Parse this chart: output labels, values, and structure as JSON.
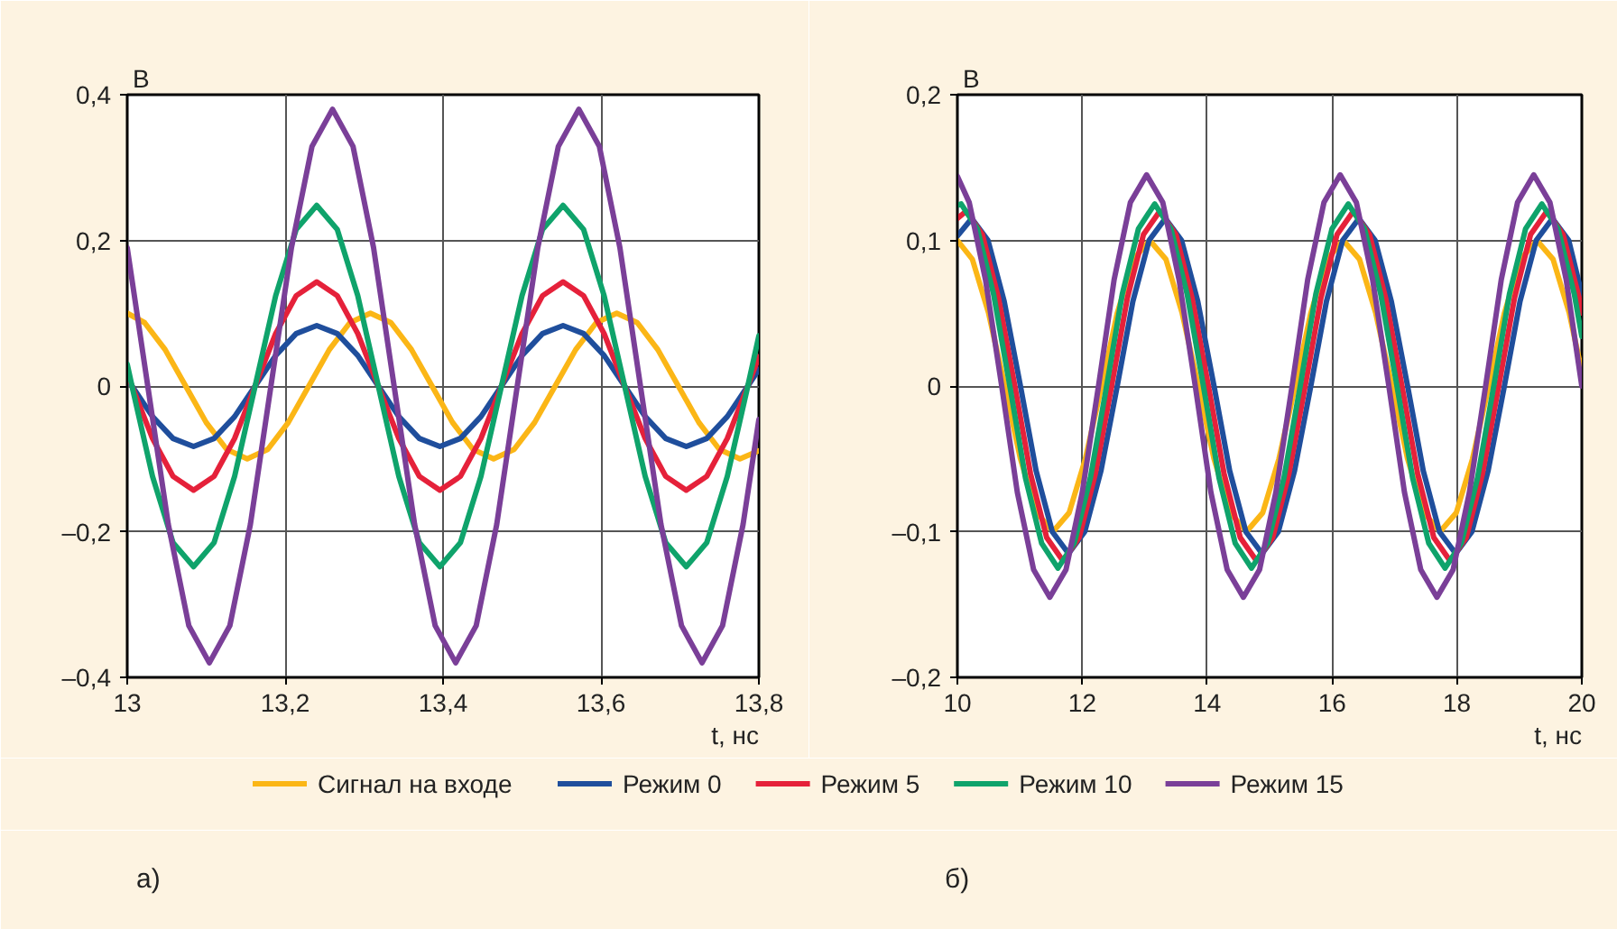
{
  "chart_data": [
    {
      "type": "line",
      "xlabel": "t, нс",
      "ylabel": "В",
      "annotations": [
        "а)"
      ],
      "grid": true,
      "legend": "bottom",
      "line_style": "solid",
      "xlim": [
        13,
        13.8
      ],
      "xticks": [
        13,
        {
          "value": 13.2,
          "label": "13,2"
        },
        {
          "value": 13.4,
          "label": "13,4"
        },
        {
          "value": 13.6,
          "label": "13,6"
        },
        {
          "value": 13.8,
          "label": "13,8"
        }
      ],
      "ylim": [
        -0.4,
        0.4
      ],
      "yticks": [
        {
          "value": -0.4,
          "label": "–0,4"
        },
        {
          "value": -0.2,
          "label": "–0,2"
        },
        0,
        {
          "value": 0.2,
          "label": "0,2"
        },
        {
          "value": 0.4,
          "label": "0,4"
        }
      ],
      "series": [
        {
          "name": "Сигнал на входе",
          "color": "#fbb616",
          "x": [
            13,
            13.022,
            13.048,
            13.074,
            13.1,
            13.126,
            13.152,
            13.178,
            13.204,
            13.23,
            13.256,
            13.282,
            13.308,
            13.334,
            13.36,
            13.386,
            13.412,
            13.438,
            13.464,
            13.49,
            13.516,
            13.542,
            13.568,
            13.594,
            13.62,
            13.646,
            13.672,
            13.698,
            13.724,
            13.75,
            13.776,
            13.8
          ],
          "values": [
            0.1,
            0.087,
            0.05,
            0,
            -0.05,
            -0.087,
            -0.1,
            -0.087,
            -0.05,
            0,
            0.05,
            0.087,
            0.1,
            0.087,
            0.05,
            0,
            -0.05,
            -0.087,
            -0.1,
            -0.087,
            -0.05,
            0,
            0.05,
            0.087,
            0.1,
            0.087,
            0.05,
            0,
            -0.05,
            -0.087,
            -0.1,
            -0.089
          ]
        },
        {
          "name": "Режим 0",
          "color": "#1f4e9c",
          "x": [
            13,
            13.006,
            13.032,
            13.058,
            13.084,
            13.11,
            13.136,
            13.162,
            13.188,
            13.214,
            13.24,
            13.266,
            13.292,
            13.318,
            13.344,
            13.37,
            13.396,
            13.422,
            13.448,
            13.474,
            13.5,
            13.526,
            13.552,
            13.578,
            13.604,
            13.63,
            13.656,
            13.682,
            13.708,
            13.734,
            13.76,
            13.786,
            13.8
          ],
          "values": [
            0.01,
            0,
            -0.042,
            -0.072,
            -0.083,
            -0.072,
            -0.042,
            0,
            0.042,
            0.072,
            0.083,
            0.072,
            0.042,
            0,
            -0.042,
            -0.072,
            -0.083,
            -0.072,
            -0.042,
            0,
            0.042,
            0.072,
            0.083,
            0.072,
            0.042,
            0,
            -0.042,
            -0.072,
            -0.083,
            -0.072,
            -0.042,
            0,
            0.023
          ]
        },
        {
          "name": "Режим 5",
          "color": "#e5213a",
          "x": [
            13,
            13.006,
            13.032,
            13.058,
            13.084,
            13.11,
            13.136,
            13.162,
            13.188,
            13.214,
            13.24,
            13.266,
            13.292,
            13.318,
            13.344,
            13.37,
            13.396,
            13.422,
            13.448,
            13.474,
            13.5,
            13.526,
            13.552,
            13.578,
            13.604,
            13.63,
            13.656,
            13.682,
            13.708,
            13.734,
            13.76,
            13.786,
            13.8
          ],
          "values": [
            0.017,
            0,
            -0.072,
            -0.124,
            -0.143,
            -0.124,
            -0.072,
            0,
            0.072,
            0.124,
            0.143,
            0.124,
            0.072,
            0,
            -0.072,
            -0.124,
            -0.143,
            -0.124,
            -0.072,
            0,
            0.072,
            0.124,
            0.143,
            0.124,
            0.072,
            0,
            -0.072,
            -0.124,
            -0.143,
            -0.124,
            -0.072,
            0,
            0.04
          ]
        },
        {
          "name": "Режим 10",
          "color": "#0fa36b",
          "x": [
            13,
            13.006,
            13.032,
            13.058,
            13.084,
            13.11,
            13.136,
            13.162,
            13.188,
            13.214,
            13.24,
            13.266,
            13.292,
            13.318,
            13.344,
            13.37,
            13.396,
            13.422,
            13.448,
            13.474,
            13.5,
            13.526,
            13.552,
            13.578,
            13.604,
            13.63,
            13.656,
            13.682,
            13.708,
            13.734,
            13.76,
            13.786,
            13.8
          ],
          "values": [
            0.03,
            0,
            -0.124,
            -0.215,
            -0.248,
            -0.215,
            -0.124,
            0,
            0.124,
            0.215,
            0.248,
            0.215,
            0.124,
            0,
            -0.124,
            -0.215,
            -0.248,
            -0.215,
            -0.124,
            0,
            0.124,
            0.215,
            0.248,
            0.215,
            0.124,
            0,
            -0.124,
            -0.215,
            -0.248,
            -0.215,
            -0.124,
            0,
            0.069
          ]
        },
        {
          "name": "Режим 15",
          "color": "#7a3f98",
          "x": [
            13.0,
            13.026,
            13.052,
            13.078,
            13.104,
            13.13,
            13.156,
            13.182,
            13.208,
            13.234,
            13.26,
            13.286,
            13.312,
            13.338,
            13.364,
            13.39,
            13.416,
            13.442,
            13.468,
            13.494,
            13.52,
            13.546,
            13.572,
            13.598,
            13.624,
            13.65,
            13.676,
            13.702,
            13.728,
            13.754,
            13.78,
            13.8
          ],
          "values": [
            0.19,
            0,
            -0.19,
            -0.329,
            -0.38,
            -0.329,
            -0.19,
            0,
            0.19,
            0.329,
            0.38,
            0.329,
            0.19,
            0,
            -0.19,
            -0.329,
            -0.38,
            -0.329,
            -0.19,
            0,
            0.19,
            0.329,
            0.38,
            0.329,
            0.19,
            0,
            -0.19,
            -0.329,
            -0.38,
            -0.329,
            -0.19,
            -0.046
          ]
        }
      ]
    },
    {
      "type": "line",
      "xlabel": "t, нс",
      "ylabel": "В",
      "annotations": [
        "б)"
      ],
      "grid": true,
      "line_style": "solid",
      "xlim": [
        10,
        20
      ],
      "xticks": [
        10,
        12,
        14,
        16,
        18,
        20
      ],
      "ylim": [
        -0.2,
        0.2
      ],
      "yticks": [
        {
          "value": -0.2,
          "label": "–0,2"
        },
        {
          "value": -0.1,
          "label": "–0,1"
        },
        0,
        {
          "value": 0.1,
          "label": "0,1"
        },
        {
          "value": 0.2,
          "label": "0,2"
        }
      ],
      "series": [
        {
          "color": "#fbb616",
          "x": [
            10,
            10.24,
            10.5,
            10.76,
            11.01,
            11.27,
            11.53,
            11.79,
            12.05,
            12.31,
            12.56,
            12.82,
            13.08,
            13.34,
            13.6,
            13.86,
            14.11,
            14.37,
            14.63,
            14.89,
            15.15,
            15.41,
            15.66,
            15.92,
            16.18,
            16.44,
            16.7,
            16.96,
            17.21,
            17.47,
            17.73,
            17.99,
            18.25,
            18.51,
            18.76,
            19.02,
            19.28,
            19.54,
            19.8,
            20
          ],
          "values": [
            0.1,
            0.087,
            0.05,
            0,
            -0.05,
            -0.087,
            -0.1,
            -0.087,
            -0.05,
            0,
            0.05,
            0.087,
            0.1,
            0.087,
            0.05,
            0,
            -0.05,
            -0.087,
            -0.1,
            -0.087,
            -0.05,
            0,
            0.05,
            0.087,
            0.1,
            0.087,
            0.05,
            0,
            -0.05,
            -0.087,
            -0.1,
            -0.087,
            -0.05,
            0,
            0.05,
            0.087,
            0.1,
            0.087,
            0.05,
            0.01
          ]
        },
        {
          "color": "#1f4e9c",
          "x": [
            10,
            10.23,
            10.49,
            10.75,
            11.01,
            11.26,
            11.52,
            11.78,
            12.04,
            12.3,
            12.56,
            12.81,
            13.07,
            13.33,
            13.59,
            13.85,
            14.11,
            14.36,
            14.62,
            14.88,
            15.14,
            15.4,
            15.66,
            15.91,
            16.17,
            16.43,
            16.69,
            16.95,
            17.21,
            17.46,
            17.72,
            17.98,
            18.24,
            18.5,
            18.76,
            19.01,
            19.27,
            19.53,
            19.79,
            20
          ],
          "values": [
            0.103,
            0.115,
            0.1,
            0.058,
            0,
            -0.058,
            -0.1,
            -0.115,
            -0.1,
            -0.058,
            0,
            0.058,
            0.1,
            0.115,
            0.1,
            0.058,
            0,
            -0.058,
            -0.1,
            -0.115,
            -0.1,
            -0.058,
            0,
            0.058,
            0.1,
            0.115,
            0.1,
            0.058,
            0,
            -0.058,
            -0.1,
            -0.115,
            -0.1,
            -0.058,
            0,
            0.058,
            0.1,
            0.115,
            0.1,
            0.063
          ]
        },
        {
          "color": "#e5213a",
          "x": [
            10,
            10.14,
            10.4,
            10.66,
            10.92,
            11.17,
            11.43,
            11.69,
            11.95,
            12.21,
            12.47,
            12.72,
            12.98,
            13.24,
            13.5,
            13.76,
            14.02,
            14.27,
            14.53,
            14.79,
            15.05,
            15.31,
            15.57,
            15.82,
            16.08,
            16.34,
            16.6,
            16.86,
            17.12,
            17.37,
            17.63,
            17.89,
            18.15,
            18.41,
            18.67,
            18.92,
            19.18,
            19.44,
            19.7,
            19.96,
            20
          ],
          "values": [
            0.115,
            0.12,
            0.104,
            0.06,
            0,
            -0.06,
            -0.104,
            -0.12,
            -0.104,
            -0.06,
            0,
            0.06,
            0.104,
            0.12,
            0.104,
            0.06,
            0,
            -0.06,
            -0.104,
            -0.12,
            -0.104,
            -0.06,
            0,
            0.06,
            0.104,
            0.12,
            0.104,
            0.06,
            0,
            -0.06,
            -0.104,
            -0.12,
            -0.104,
            -0.06,
            0,
            0.06,
            0.104,
            0.12,
            0.104,
            0.06,
            0.05
          ]
        },
        {
          "color": "#0fa36b",
          "x": [
            10,
            10.06,
            10.32,
            10.58,
            10.84,
            11.09,
            11.35,
            11.61,
            11.87,
            12.13,
            12.39,
            12.64,
            12.9,
            13.16,
            13.42,
            13.68,
            13.94,
            14.19,
            14.45,
            14.71,
            14.97,
            15.23,
            15.49,
            15.74,
            16.0,
            16.26,
            16.52,
            16.78,
            17.04,
            17.29,
            17.55,
            17.81,
            18.07,
            18.33,
            18.59,
            18.84,
            19.1,
            19.36,
            19.62,
            19.88,
            20
          ],
          "values": [
            0.124,
            0.125,
            0.108,
            0.063,
            0,
            -0.063,
            -0.108,
            -0.125,
            -0.108,
            -0.063,
            0,
            0.063,
            0.108,
            0.125,
            0.108,
            0.063,
            0,
            -0.063,
            -0.108,
            -0.125,
            -0.108,
            -0.063,
            0,
            0.063,
            0.108,
            0.125,
            0.108,
            0.063,
            0,
            -0.063,
            -0.108,
            -0.125,
            -0.108,
            -0.063,
            0,
            0.063,
            0.108,
            0.125,
            0.108,
            0.063,
            0.034
          ]
        },
        {
          "color": "#7a3f98",
          "x": [
            10,
            10.19,
            10.45,
            10.71,
            10.96,
            11.22,
            11.48,
            11.74,
            12.0,
            12.26,
            12.51,
            12.77,
            13.03,
            13.29,
            13.55,
            13.81,
            14.06,
            14.32,
            14.58,
            14.84,
            15.1,
            15.36,
            15.61,
            15.87,
            16.13,
            16.39,
            16.65,
            16.91,
            17.16,
            17.42,
            17.68,
            17.94,
            18.2,
            18.46,
            18.71,
            18.97,
            19.23,
            19.49,
            19.75,
            20
          ],
          "values": [
            0.144,
            0.126,
            0.073,
            0,
            -0.073,
            -0.126,
            -0.145,
            -0.126,
            -0.073,
            0,
            0.073,
            0.126,
            0.145,
            0.126,
            0.073,
            0,
            -0.073,
            -0.126,
            -0.145,
            -0.126,
            -0.073,
            0,
            0.073,
            0.126,
            0.145,
            0.126,
            0.073,
            0,
            -0.073,
            -0.126,
            -0.145,
            -0.126,
            -0.073,
            0,
            0.073,
            0.126,
            0.145,
            0.126,
            0.073,
            0
          ]
        }
      ]
    }
  ]
}
